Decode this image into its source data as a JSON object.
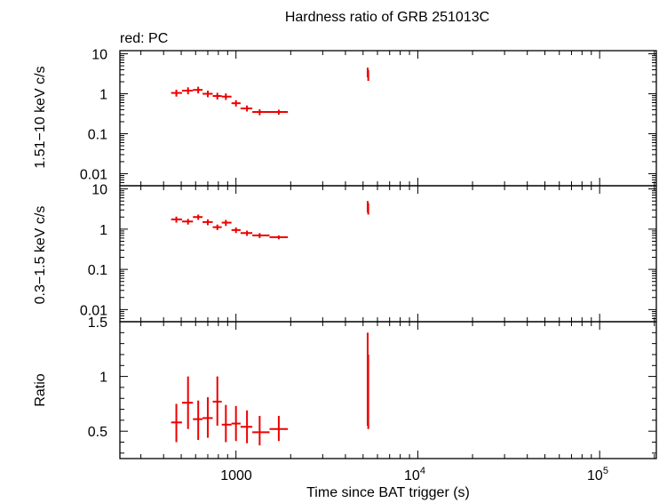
{
  "title": "Hardness ratio of GRB 251013C",
  "legend": "red: PC",
  "series_color": "#ee0000",
  "xlabel": "Time since BAT trigger (s)",
  "x_tick_labels": [
    "1000",
    "10",
    "10"
  ],
  "x_tick_exponents": [
    "",
    "4",
    "5"
  ],
  "chart_data": [
    {
      "type": "scatter",
      "panel": "hard",
      "ylabel": "1.51−10 keV c/s",
      "x_scale": "log",
      "y_scale": "log",
      "xlim": [
        230,
        205000
      ],
      "ylim": [
        0.005,
        12
      ],
      "y_ticks": [
        10,
        1,
        0.1,
        0.01
      ],
      "y_tick_labels": [
        "10",
        "1",
        "0.1",
        "0.01"
      ],
      "x": [
        470,
        545,
        620,
        700,
        790,
        880,
        1000,
        1150,
        1350,
        1720,
        5300,
        5340
      ],
      "x_lo": [
        440,
        505,
        580,
        655,
        745,
        835,
        945,
        1060,
        1230,
        1530,
        5250,
        5300
      ],
      "x_hi": [
        505,
        580,
        655,
        745,
        835,
        945,
        1060,
        1230,
        1530,
        1930,
        5330,
        5370
      ],
      "y": [
        1.05,
        1.2,
        1.25,
        1.0,
        0.88,
        0.85,
        0.58,
        0.43,
        0.35,
        0.35,
        3.4,
        2.9
      ],
      "y_lo": [
        0.85,
        0.97,
        1.02,
        0.82,
        0.72,
        0.7,
        0.48,
        0.36,
        0.29,
        0.3,
        2.6,
        2.1
      ],
      "y_hi": [
        1.27,
        1.45,
        1.5,
        1.2,
        1.06,
        1.02,
        0.69,
        0.51,
        0.41,
        0.4,
        4.5,
        3.9
      ]
    },
    {
      "type": "scatter",
      "panel": "soft",
      "ylabel": "0.3−1.5 keV c/s",
      "x_scale": "log",
      "y_scale": "log",
      "xlim": [
        230,
        205000
      ],
      "ylim": [
        0.005,
        12
      ],
      "y_ticks": [
        10,
        1,
        0.1,
        0.01
      ],
      "y_tick_labels": [
        "10",
        "1",
        "0.1",
        "0.01"
      ],
      "x": [
        470,
        545,
        620,
        700,
        790,
        880,
        1000,
        1150,
        1350,
        1720,
        5300,
        5340
      ],
      "x_lo": [
        440,
        505,
        580,
        655,
        745,
        835,
        945,
        1060,
        1230,
        1530,
        5250,
        5300
      ],
      "x_hi": [
        505,
        580,
        655,
        745,
        835,
        945,
        1060,
        1230,
        1530,
        1930,
        5330,
        5370
      ],
      "y": [
        1.75,
        1.55,
        2.0,
        1.5,
        1.12,
        1.45,
        0.95,
        0.8,
        0.7,
        0.63,
        3.6,
        3.2
      ],
      "y_lo": [
        1.45,
        1.3,
        1.7,
        1.25,
        0.95,
        1.2,
        0.8,
        0.68,
        0.6,
        0.56,
        2.6,
        2.3
      ],
      "y_hi": [
        2.05,
        1.8,
        2.3,
        1.75,
        1.3,
        1.7,
        1.1,
        0.92,
        0.8,
        0.7,
        5.0,
        4.4
      ]
    },
    {
      "type": "scatter",
      "panel": "ratio",
      "ylabel": "Ratio",
      "x_scale": "log",
      "y_scale": "linear",
      "xlim": [
        230,
        205000
      ],
      "ylim": [
        0.25,
        1.5
      ],
      "y_ticks": [
        1.5,
        1,
        0.5
      ],
      "y_tick_labels": [
        "1.5",
        "1",
        "0.5"
      ],
      "x": [
        470,
        545,
        620,
        700,
        790,
        880,
        1000,
        1150,
        1350,
        1720,
        5300,
        5340
      ],
      "x_lo": [
        440,
        505,
        580,
        655,
        745,
        835,
        945,
        1060,
        1230,
        1530,
        5250,
        5300
      ],
      "x_hi": [
        505,
        580,
        655,
        745,
        835,
        945,
        1060,
        1230,
        1530,
        1930,
        5330,
        5370
      ],
      "y": [
        0.58,
        0.76,
        0.61,
        0.62,
        0.77,
        0.56,
        0.57,
        0.54,
        0.49,
        0.52,
        1.1,
        0.85
      ],
      "y_lo": [
        0.4,
        0.52,
        0.42,
        0.44,
        0.55,
        0.4,
        0.41,
        0.39,
        0.37,
        0.41,
        0.55,
        0.52
      ],
      "y_hi": [
        0.75,
        1.0,
        0.78,
        0.81,
        1.0,
        0.74,
        0.73,
        0.69,
        0.64,
        0.64,
        1.4,
        1.2
      ]
    }
  ]
}
